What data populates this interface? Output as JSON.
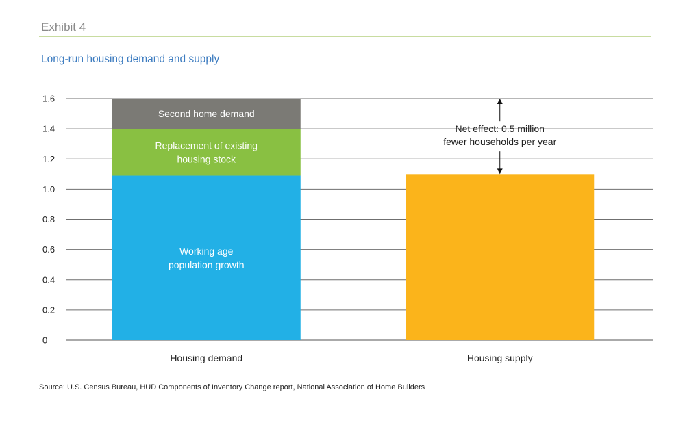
{
  "header": {
    "exhibit": "Exhibit 4",
    "title": "Long-run housing demand and supply"
  },
  "chart_data": {
    "type": "bar",
    "stacked": true,
    "categories": [
      "Housing demand",
      "Housing supply"
    ],
    "series": [
      {
        "name": "Working age population growth",
        "label": "Working age population growth",
        "color": "#22b0e6",
        "values": [
          1.09,
          0
        ]
      },
      {
        "name": "Replacement of existing housing stock",
        "label": "Replacement of existing housing stock",
        "color": "#89c042",
        "values": [
          0.31,
          0
        ]
      },
      {
        "name": "Second home demand",
        "label": "Second home demand",
        "color": "#7b7a75",
        "values": [
          0.2,
          0
        ]
      },
      {
        "name": "Housing supply",
        "label": "",
        "color": "#fbb41b",
        "values": [
          0,
          1.1
        ]
      }
    ],
    "segment_labels": [
      [
        "Working age",
        "population growth"
      ],
      [
        "Replacement of existing",
        "housing stock"
      ],
      [
        "Second home demand"
      ]
    ],
    "yticks": [
      "0",
      "0.2",
      "0.4",
      "0.6",
      "0.8",
      "1.0",
      "1.2",
      "1.4",
      "1.6"
    ],
    "ylim": [
      0,
      1.6
    ],
    "grid": true,
    "annotation": {
      "lines": [
        "Net effect: 0.5 million",
        "fewer households per year"
      ],
      "from": 1.1,
      "to": 1.6
    }
  },
  "source": "Source: U.S. Census Bureau, HUD Components of Inventory Change report, National Association of Home Builders"
}
